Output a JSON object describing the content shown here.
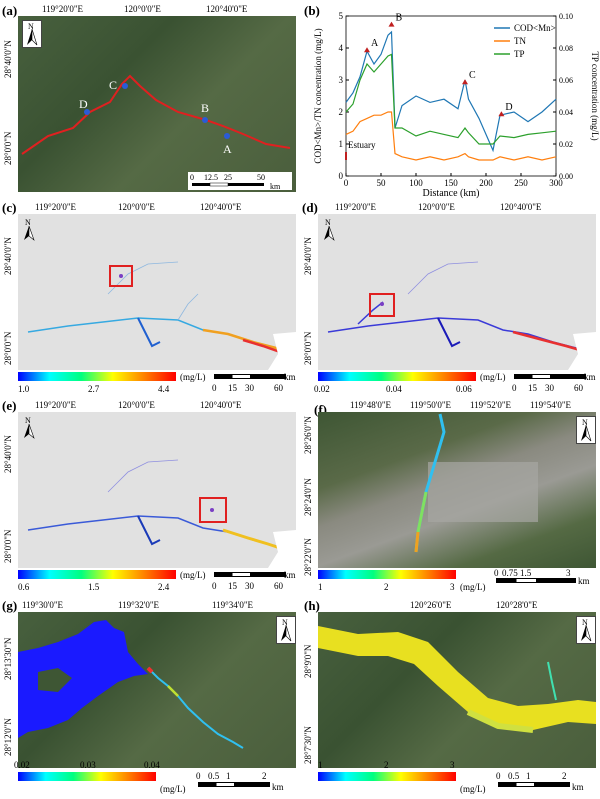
{
  "panels": {
    "a": {
      "label": "(a)",
      "top_ticks": [
        "119°20'0\"E",
        "120°0'0\"E",
        "120°40'0\"E"
      ],
      "left_ticks": [
        "28°40'0\"N",
        "28°0'0\"N"
      ],
      "points": [
        "A",
        "B",
        "C",
        "D"
      ],
      "scale": [
        "0",
        "12.5",
        "25",
        "50"
      ],
      "scale_unit": "km",
      "north": "N"
    },
    "b": {
      "label": "(b)",
      "estuary": "Estuary",
      "markers": [
        "A",
        "B",
        "C",
        "D"
      ]
    },
    "c": {
      "label": "(c)",
      "top_ticks": [
        "119°20'0\"E",
        "120°0'0\"E",
        "120°40'0\"E"
      ],
      "left_ticks": [
        "28°40'0\"N",
        "28°0'0\"N"
      ],
      "cbar": [
        "1.0",
        "2.7",
        "4.4"
      ],
      "unit": "(mg/L)",
      "scale": [
        "0",
        "15",
        "30",
        "60"
      ],
      "scale_unit": "km",
      "north": "N"
    },
    "d": {
      "label": "(d)",
      "top_ticks": [
        "119°20'0\"E",
        "120°0'0\"E",
        "120°40'0\"E"
      ],
      "left_ticks": [
        "28°40'0\"N",
        "28°0'0\"N"
      ],
      "cbar": [
        "0.02",
        "0.04",
        "0.06"
      ],
      "unit": "(mg/L)",
      "scale": [
        "0",
        "15",
        "30",
        "60"
      ],
      "scale_unit": "km",
      "north": "N"
    },
    "e": {
      "label": "(e)",
      "top_ticks": [
        "119°20'0\"E",
        "120°0'0\"E",
        "120°40'0\"E"
      ],
      "left_ticks": [
        "28°40'0\"N",
        "28°0'0\"N"
      ],
      "cbar": [
        "0.6",
        "1.5",
        "2.4"
      ],
      "unit": "(mg/L)",
      "scale": [
        "0",
        "15",
        "30",
        "60"
      ],
      "scale_unit": "km",
      "north": "N"
    },
    "f": {
      "label": "(f)",
      "top_ticks": [
        "119°48'0\"E",
        "119°50'0\"E",
        "119°52'0\"E",
        "119°54'0\"E"
      ],
      "left_ticks": [
        "28°26'0\"N",
        "28°24'0\"N",
        "28°22'0\"N"
      ],
      "cbar": [
        "1",
        "2",
        "3"
      ],
      "unit": "(mg/L)",
      "scale": [
        "0",
        "0.75",
        "1.5",
        "3"
      ],
      "scale_unit": "km",
      "north": "N"
    },
    "g": {
      "label": "(g)",
      "top_ticks": [
        "119°30'0\"E",
        "119°32'0\"E",
        "119°34'0\"E"
      ],
      "left_ticks": [
        "28°13'30\"N",
        "28°12'0\"N"
      ],
      "cbar": [
        "0.02",
        "0.03",
        "0.04"
      ],
      "unit": "(mg/L)",
      "scale": [
        "0",
        "0.5",
        "1",
        "2"
      ],
      "scale_unit": "km",
      "north": "N"
    },
    "h": {
      "label": "(h)",
      "top_ticks": [
        "120°26'0\"E",
        "120°28'0\"E"
      ],
      "left_ticks": [
        "28°9'0\"N",
        "28°7'30\"N"
      ],
      "cbar": [
        "1",
        "2",
        "3"
      ],
      "unit": "(mg/L)",
      "scale": [
        "0",
        "0.5",
        "1",
        "2"
      ],
      "scale_unit": "km",
      "north": "N"
    }
  },
  "chart_data": {
    "type": "line",
    "xlabel": "Distance (km)",
    "ylabel": "COD<Mn>/TN concentration (mg/L)",
    "ylabel_right": "TP concentration (mg/L)",
    "xlim": [
      0,
      300
    ],
    "ylim": [
      0,
      5
    ],
    "ylim_right": [
      0,
      0.1
    ],
    "xticks": [
      "0",
      "50",
      "100",
      "150",
      "200",
      "250",
      "300"
    ],
    "yticks": [
      "0",
      "1",
      "2",
      "3",
      "4",
      "5"
    ],
    "yticks_right": [
      "0.00",
      "0.02",
      "0.04",
      "0.06",
      "0.08",
      "0.10"
    ],
    "legend_position": "top-right",
    "x": [
      0,
      10,
      20,
      30,
      40,
      50,
      60,
      65,
      70,
      80,
      100,
      120,
      140,
      160,
      170,
      175,
      190,
      210,
      220,
      240,
      260,
      280,
      300
    ],
    "series": [
      {
        "name": "COD<Mn>",
        "color": "#1f77b4",
        "axis": "left",
        "values": [
          2.3,
          2.6,
          3.1,
          3.9,
          3.5,
          3.8,
          4.4,
          4.5,
          1.5,
          2.2,
          2.5,
          2.3,
          2.4,
          2.1,
          3.0,
          2.4,
          1.8,
          0.8,
          1.9,
          2.0,
          1.7,
          2.0,
          2.4
        ]
      },
      {
        "name": "TN",
        "color": "#ff7f0e",
        "axis": "left",
        "values": [
          1.3,
          1.4,
          1.7,
          1.8,
          1.9,
          1.9,
          2.0,
          2.0,
          0.7,
          0.6,
          0.5,
          0.6,
          0.5,
          0.6,
          0.7,
          0.6,
          0.5,
          0.5,
          0.6,
          0.5,
          0.6,
          0.5,
          0.6
        ]
      },
      {
        "name": "TP",
        "color": "#2ca02c",
        "axis": "right",
        "values": [
          0.04,
          0.045,
          0.06,
          0.07,
          0.065,
          0.07,
          0.075,
          0.076,
          0.03,
          0.03,
          0.025,
          0.028,
          0.026,
          0.024,
          0.03,
          0.027,
          0.02,
          0.02,
          0.025,
          0.024,
          0.026,
          0.027,
          0.028
        ]
      }
    ]
  }
}
